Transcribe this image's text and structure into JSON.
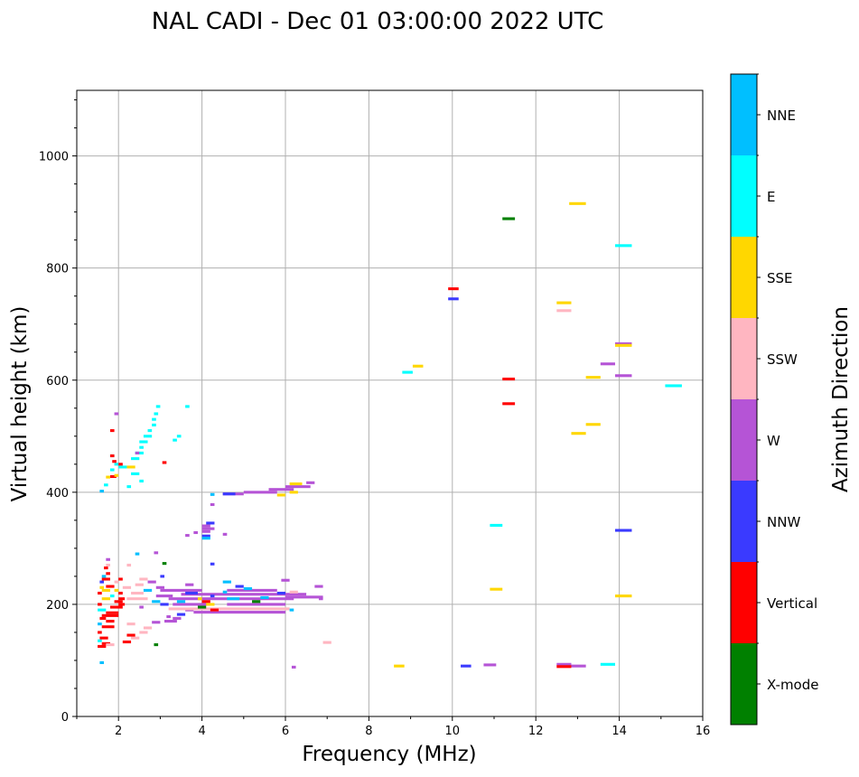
{
  "chart_data": {
    "type": "scatter",
    "title": "NAL CADI - Dec 01 03:00:00 2022 UTC",
    "xlabel": "Frequency (MHz)",
    "ylabel": "Virtual height (km)",
    "xlim": [
      1,
      16
    ],
    "ylim": [
      0,
      1117
    ],
    "xticks": [
      2,
      4,
      6,
      8,
      10,
      12,
      14,
      16
    ],
    "yticks": [
      0,
      200,
      400,
      600,
      800,
      1000
    ],
    "grid": true,
    "colorbar": {
      "label": "Azimuth Direction",
      "categories": [
        "X-mode",
        "Vertical",
        "NNW",
        "W",
        "SSW",
        "SSE",
        "E",
        "NNE"
      ],
      "colors": [
        "#008000",
        "#ff0000",
        "#3a3aff",
        "#b554d6",
        "#ffb6c1",
        "#ffd700",
        "#00ffff",
        "#00bfff"
      ]
    },
    "cell_height_km": 5,
    "echoes_format": "[freq_start_MHz, freq_end_MHz, virtual_height_km, category_index]",
    "echoes": [
      [
        1.55,
        1.65,
        96,
        7
      ],
      [
        1.5,
        1.7,
        125,
        1
      ],
      [
        1.6,
        1.8,
        130,
        1
      ],
      [
        1.5,
        1.6,
        135,
        6
      ],
      [
        1.7,
        1.9,
        128,
        4
      ],
      [
        1.55,
        1.75,
        140,
        1
      ],
      [
        1.5,
        1.6,
        150,
        1
      ],
      [
        1.6,
        1.9,
        160,
        1
      ],
      [
        1.5,
        1.6,
        165,
        7
      ],
      [
        1.55,
        1.7,
        175,
        1
      ],
      [
        1.7,
        1.9,
        170,
        1
      ],
      [
        1.6,
        2.0,
        180,
        1
      ],
      [
        1.5,
        1.7,
        190,
        6
      ],
      [
        1.7,
        2.0,
        185,
        1
      ],
      [
        1.8,
        2.1,
        195,
        1
      ],
      [
        1.9,
        2.1,
        205,
        1
      ],
      [
        1.6,
        1.8,
        210,
        5
      ],
      [
        1.5,
        1.6,
        220,
        1
      ],
      [
        1.6,
        1.8,
        225,
        5
      ],
      [
        1.7,
        1.9,
        232,
        1
      ],
      [
        1.55,
        1.65,
        240,
        2
      ],
      [
        1.6,
        1.8,
        245,
        1
      ],
      [
        1.7,
        1.8,
        255,
        1
      ],
      [
        1.65,
        1.75,
        265,
        1
      ],
      [
        1.7,
        1.8,
        280,
        3
      ],
      [
        1.9,
        2.0,
        225,
        5
      ],
      [
        1.8,
        1.9,
        215,
        6
      ],
      [
        1.5,
        1.6,
        200,
        1
      ],
      [
        1.55,
        1.65,
        230,
        5
      ],
      [
        1.6,
        1.7,
        250,
        7
      ],
      [
        1.7,
        1.8,
        270,
        4
      ],
      [
        2.0,
        2.15,
        200,
        1
      ],
      [
        2.0,
        2.15,
        210,
        1
      ],
      [
        2.0,
        2.1,
        220,
        1
      ],
      [
        2.1,
        2.3,
        133,
        1
      ],
      [
        2.3,
        2.5,
        140,
        4
      ],
      [
        2.2,
        2.4,
        145,
        1
      ],
      [
        2.5,
        2.7,
        150,
        4
      ],
      [
        2.6,
        2.8,
        158,
        4
      ],
      [
        2.2,
        2.4,
        165,
        4
      ],
      [
        2.2,
        2.7,
        210,
        4
      ],
      [
        2.3,
        2.6,
        220,
        4
      ],
      [
        2.1,
        2.3,
        230,
        4
      ],
      [
        2.4,
        2.6,
        235,
        4
      ],
      [
        2.5,
        2.7,
        245,
        4
      ],
      [
        2.2,
        2.3,
        270,
        4
      ],
      [
        1.9,
        2.0,
        240,
        4
      ],
      [
        2.4,
        2.5,
        290,
        7
      ],
      [
        2.85,
        2.95,
        292,
        3
      ],
      [
        3.05,
        3.15,
        273,
        0
      ],
      [
        2.85,
        2.95,
        128,
        0
      ],
      [
        2.0,
        2.1,
        245,
        1
      ],
      [
        3.0,
        3.1,
        250,
        2
      ],
      [
        2.6,
        2.8,
        225,
        7
      ],
      [
        2.7,
        2.9,
        240,
        3
      ],
      [
        2.9,
        3.1,
        230,
        3
      ],
      [
        2.5,
        2.6,
        195,
        3
      ],
      [
        2.8,
        3.0,
        168,
        3
      ],
      [
        3.1,
        3.4,
        170,
        3
      ],
      [
        3.3,
        3.5,
        175,
        3
      ],
      [
        3.4,
        3.6,
        182,
        2
      ],
      [
        3.15,
        3.25,
        178,
        3
      ],
      [
        3.6,
        3.8,
        190,
        3
      ],
      [
        3.2,
        6.2,
        210,
        3
      ],
      [
        3.5,
        6.5,
        218,
        3
      ],
      [
        3.0,
        4.0,
        225,
        3
      ],
      [
        4.6,
        5.8,
        225,
        3
      ],
      [
        3.6,
        3.8,
        235,
        3
      ],
      [
        4.5,
        4.7,
        240,
        7
      ],
      [
        5.9,
        6.1,
        243,
        3
      ],
      [
        6.7,
        6.9,
        232,
        3
      ],
      [
        6.0,
        6.9,
        213,
        3
      ],
      [
        3.3,
        4.2,
        200,
        3
      ],
      [
        4.6,
        6.0,
        200,
        3
      ],
      [
        3.2,
        6.1,
        192,
        4
      ],
      [
        3.8,
        6.0,
        186,
        3
      ],
      [
        4.0,
        4.2,
        205,
        1
      ],
      [
        3.9,
        4.0,
        210,
        5
      ],
      [
        4.2,
        4.3,
        215,
        2
      ],
      [
        4.5,
        4.6,
        222,
        7
      ],
      [
        5.0,
        5.2,
        228,
        7
      ],
      [
        4.8,
        5.0,
        232,
        2
      ],
      [
        4.6,
        4.9,
        210,
        7
      ],
      [
        5.2,
        5.4,
        205,
        0
      ],
      [
        5.4,
        5.6,
        212,
        7
      ],
      [
        6.1,
        6.2,
        190,
        7
      ],
      [
        3.4,
        3.6,
        205,
        7
      ],
      [
        3.6,
        3.9,
        220,
        2
      ],
      [
        4.1,
        4.3,
        200,
        5
      ],
      [
        4.2,
        4.4,
        190,
        1
      ],
      [
        3.0,
        3.2,
        200,
        2
      ],
      [
        2.9,
        3.3,
        215,
        3
      ],
      [
        2.8,
        3.0,
        205,
        7
      ],
      [
        3.9,
        4.1,
        195,
        0
      ],
      [
        5.8,
        6.0,
        220,
        2
      ],
      [
        6.1,
        6.3,
        222,
        4
      ],
      [
        6.8,
        6.9,
        210,
        3
      ],
      [
        4.0,
        4.2,
        340,
        3
      ],
      [
        4.0,
        4.3,
        335,
        3
      ],
      [
        4.0,
        4.2,
        330,
        3
      ],
      [
        4.1,
        4.3,
        345,
        2
      ],
      [
        4.0,
        4.2,
        322,
        2
      ],
      [
        4.0,
        4.2,
        318,
        7
      ],
      [
        3.8,
        3.9,
        328,
        3
      ],
      [
        3.6,
        3.7,
        323,
        3
      ],
      [
        4.5,
        4.6,
        325,
        3
      ],
      [
        4.2,
        4.3,
        378,
        3
      ],
      [
        4.2,
        4.3,
        272,
        2
      ],
      [
        5.0,
        5.8,
        400,
        3
      ],
      [
        5.6,
        6.2,
        405,
        3
      ],
      [
        6.0,
        6.6,
        410,
        3
      ],
      [
        6.5,
        6.7,
        417,
        3
      ],
      [
        6.1,
        6.4,
        415,
        5
      ],
      [
        6.1,
        6.3,
        400,
        5
      ],
      [
        4.5,
        5.0,
        397,
        3
      ],
      [
        4.5,
        4.8,
        397,
        2
      ],
      [
        4.2,
        4.3,
        396,
        7
      ],
      [
        5.8,
        6.0,
        395,
        5
      ],
      [
        1.55,
        1.65,
        402,
        7
      ],
      [
        1.65,
        1.75,
        413,
        6
      ],
      [
        1.8,
        1.9,
        440,
        6
      ],
      [
        1.9,
        2.0,
        450,
        6
      ],
      [
        1.8,
        1.9,
        465,
        6
      ],
      [
        2.0,
        2.2,
        445,
        6
      ],
      [
        2.3,
        2.5,
        460,
        6
      ],
      [
        2.4,
        2.6,
        470,
        6
      ],
      [
        2.5,
        2.6,
        480,
        6
      ],
      [
        2.5,
        2.7,
        490,
        6
      ],
      [
        2.6,
        2.8,
        500,
        6
      ],
      [
        2.7,
        2.8,
        510,
        6
      ],
      [
        2.8,
        2.9,
        520,
        6
      ],
      [
        2.8,
        2.9,
        530,
        6
      ],
      [
        2.85,
        2.95,
        540,
        6
      ],
      [
        2.9,
        3.0,
        553,
        6
      ],
      [
        3.4,
        3.5,
        500,
        6
      ],
      [
        3.3,
        3.4,
        493,
        6
      ],
      [
        3.6,
        3.7,
        553,
        6
      ],
      [
        2.3,
        2.5,
        433,
        6
      ],
      [
        2.5,
        2.6,
        420,
        6
      ],
      [
        2.2,
        2.3,
        410,
        6
      ],
      [
        2.2,
        2.4,
        445,
        5
      ],
      [
        2.4,
        2.5,
        470,
        3
      ],
      [
        3.05,
        3.15,
        453,
        1
      ],
      [
        1.8,
        1.9,
        510,
        1
      ],
      [
        1.8,
        1.9,
        465,
        1
      ],
      [
        1.85,
        1.95,
        455,
        1
      ],
      [
        1.8,
        1.95,
        428,
        1
      ],
      [
        1.9,
        2.0,
        540,
        3
      ],
      [
        1.9,
        2.0,
        430,
        5
      ],
      [
        1.7,
        1.8,
        427,
        5
      ],
      [
        2.0,
        2.1,
        450,
        1
      ],
      [
        6.9,
        7.1,
        132,
        4
      ],
      [
        6.15,
        6.25,
        88,
        3
      ],
      [
        11.2,
        11.5,
        888,
        0
      ],
      [
        12.8,
        13.2,
        915,
        5
      ],
      [
        13.9,
        14.3,
        840,
        6
      ],
      [
        9.9,
        10.15,
        763,
        1
      ],
      [
        9.9,
        10.15,
        745,
        2
      ],
      [
        12.5,
        12.85,
        738,
        5
      ],
      [
        12.5,
        12.85,
        724,
        4
      ],
      [
        13.9,
        14.3,
        665,
        3
      ],
      [
        13.9,
        14.3,
        662,
        5
      ],
      [
        13.55,
        13.9,
        629,
        3
      ],
      [
        13.9,
        14.3,
        608,
        3
      ],
      [
        13.2,
        13.55,
        605,
        5
      ],
      [
        15.1,
        15.5,
        590,
        6
      ],
      [
        9.05,
        9.3,
        625,
        5
      ],
      [
        8.8,
        9.05,
        614,
        6
      ],
      [
        11.2,
        11.5,
        602,
        1
      ],
      [
        11.2,
        11.5,
        558,
        1
      ],
      [
        13.2,
        13.55,
        521,
        5
      ],
      [
        12.85,
        13.2,
        505,
        5
      ],
      [
        10.9,
        11.2,
        341,
        6
      ],
      [
        13.9,
        14.3,
        332,
        2
      ],
      [
        10.9,
        11.2,
        227,
        5
      ],
      [
        13.9,
        14.3,
        215,
        5
      ],
      [
        8.6,
        8.85,
        90,
        5
      ],
      [
        10.2,
        10.45,
        90,
        2
      ],
      [
        10.75,
        11.05,
        92,
        3
      ],
      [
        12.5,
        12.85,
        93,
        3
      ],
      [
        12.5,
        12.85,
        89,
        1
      ],
      [
        12.85,
        13.2,
        90,
        3
      ],
      [
        13.55,
        13.9,
        93,
        6
      ]
    ]
  }
}
